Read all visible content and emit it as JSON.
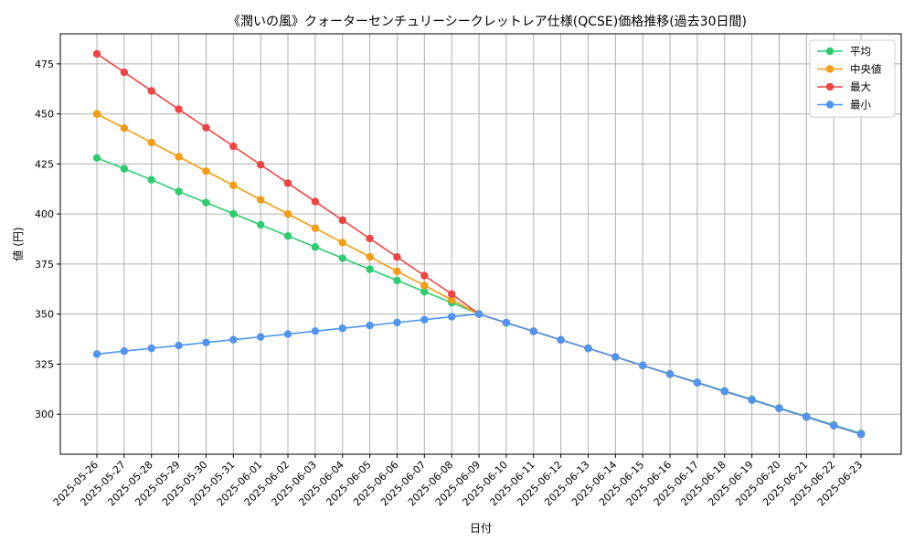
{
  "chart_data": {
    "type": "line",
    "title": "《潤いの風》クォーターセンチュリーシークレットレア仕様(QCSE)価格推移(過去30日間)",
    "xlabel": "日付",
    "ylabel": "値 (円)",
    "ylim": [
      280,
      490
    ],
    "yticks": [
      300,
      325,
      350,
      375,
      400,
      425,
      450,
      475
    ],
    "grid": true,
    "legend_position": "top-right",
    "categories": [
      "2025-05-26",
      "2025-05-27",
      "2025-05-28",
      "2025-05-29",
      "2025-05-30",
      "2025-05-31",
      "2025-06-01",
      "2025-06-02",
      "2025-06-03",
      "2025-06-04",
      "2025-06-05",
      "2025-06-06",
      "2025-06-07",
      "2025-06-08",
      "2025-06-09",
      "2025-06-10",
      "2025-06-11",
      "2025-06-12",
      "2025-06-13",
      "2025-06-14",
      "2025-06-15",
      "2025-06-16",
      "2025-06-17",
      "2025-06-18",
      "2025-06-19",
      "2025-06-20",
      "2025-06-21",
      "2025-06-22",
      "2025-06-23"
    ],
    "series": [
      {
        "name": "平均",
        "color": "#2ecc71",
        "values": [
          428,
          422.6,
          417.1,
          411.2,
          405.7,
          400.1,
          394.6,
          389,
          383.5,
          377.9,
          372.4,
          366.8,
          361.2,
          355.7,
          350.1,
          345.6,
          341.4,
          337.1,
          332.9,
          328.6,
          324.4,
          320.1,
          315.9,
          311.6,
          307.4,
          303.1,
          298.9,
          294.6,
          290.4
        ]
      },
      {
        "name": "中央値",
        "color": "#f39c12",
        "values": [
          450,
          442.9,
          435.7,
          428.6,
          421.4,
          414.3,
          407.1,
          400,
          392.9,
          385.7,
          378.6,
          371.4,
          364.3,
          357.1,
          350,
          345.7,
          341.4,
          337.1,
          332.9,
          328.6,
          324.3,
          320,
          315.7,
          311.4,
          307.1,
          302.9,
          298.6,
          294.3,
          290
        ]
      },
      {
        "name": "最大",
        "color": "#ef4444",
        "values": [
          480,
          470.8,
          461.5,
          452.3,
          443.1,
          433.8,
          424.6,
          415.4,
          406.2,
          396.9,
          387.7,
          378.5,
          369.2,
          360,
          350,
          345.7,
          341.4,
          337.1,
          332.9,
          328.6,
          324.3,
          320,
          315.7,
          311.4,
          307.1,
          302.9,
          298.6,
          294.3,
          290
        ]
      },
      {
        "name": "最小",
        "color": "#4f94f0",
        "values": [
          330,
          331.5,
          332.9,
          334.3,
          335.8,
          337.2,
          338.6,
          340,
          341.5,
          342.9,
          344.3,
          345.8,
          347.2,
          348.7,
          350,
          345.7,
          341.4,
          337.1,
          332.9,
          328.6,
          324.3,
          320,
          315.7,
          311.4,
          307.1,
          302.9,
          298.6,
          294.3,
          290
        ]
      }
    ]
  }
}
